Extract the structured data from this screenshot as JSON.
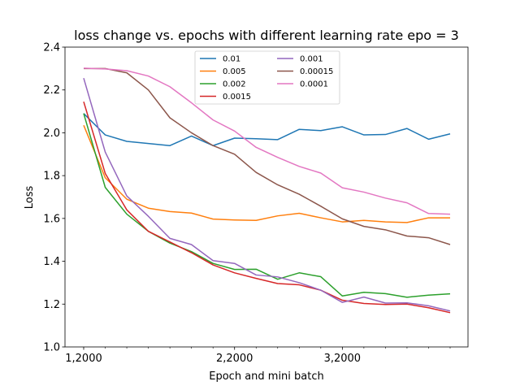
{
  "chart_data": {
    "type": "line",
    "title": "loss change vs. epochs with different learning rate epo = 3",
    "xlabel": "Epoch and mini batch",
    "ylabel": "Loss",
    "ylim": [
      1.0,
      2.4
    ],
    "yticks": [
      1.0,
      1.2,
      1.4,
      1.6,
      1.8,
      2.0,
      2.2,
      2.4
    ],
    "ytick_labels": [
      "1.0",
      "1.2",
      "1.4",
      "1.6",
      "1.8",
      "2.0",
      "2.2",
      "2.4"
    ],
    "xticks_major": [
      0,
      7,
      12
    ],
    "xtick_labels": [
      "1,2000",
      "2,2000",
      "3,2000"
    ],
    "x": [
      0,
      1,
      2,
      3,
      4,
      5,
      6,
      7,
      8,
      9,
      10,
      11,
      12,
      13,
      14,
      15,
      16,
      17
    ],
    "grid": false,
    "legend_position": "top-center",
    "legend_columns": 2,
    "series": [
      {
        "name": "0.01",
        "color": "#1f77b4",
        "values": [
          2.09,
          1.99,
          1.96,
          1.95,
          1.94,
          1.985,
          1.94,
          1.975,
          1.972,
          1.968,
          2.016,
          2.01,
          2.028,
          1.99,
          1.992,
          2.02,
          1.97,
          1.995
        ]
      },
      {
        "name": "0.005",
        "color": "#ff7f0e",
        "values": [
          2.035,
          1.79,
          1.69,
          1.648,
          1.632,
          1.625,
          1.597,
          1.593,
          1.591,
          1.612,
          1.624,
          1.603,
          1.584,
          1.591,
          1.584,
          1.581,
          1.603,
          1.603
        ]
      },
      {
        "name": "0.002",
        "color": "#2ca02c",
        "values": [
          2.09,
          1.745,
          1.62,
          1.54,
          1.485,
          1.445,
          1.39,
          1.362,
          1.363,
          1.316,
          1.346,
          1.328,
          1.238,
          1.255,
          1.249,
          1.232,
          1.242,
          1.248
        ]
      },
      {
        "name": "0.0015",
        "color": "#d62728",
        "values": [
          2.145,
          1.81,
          1.64,
          1.54,
          1.49,
          1.44,
          1.383,
          1.346,
          1.32,
          1.296,
          1.29,
          1.265,
          1.218,
          1.203,
          1.198,
          1.2,
          1.183,
          1.16
        ]
      },
      {
        "name": "0.001",
        "color": "#9467bd",
        "values": [
          2.255,
          1.91,
          1.705,
          1.61,
          1.507,
          1.478,
          1.403,
          1.39,
          1.336,
          1.327,
          1.3,
          1.265,
          1.208,
          1.233,
          1.205,
          1.206,
          1.192,
          1.168
        ]
      },
      {
        "name": "0.00015",
        "color": "#8c564b",
        "values": [
          2.3,
          2.3,
          2.28,
          2.2,
          2.07,
          2.0,
          1.94,
          1.9,
          1.815,
          1.757,
          1.713,
          1.657,
          1.598,
          1.563,
          1.547,
          1.518,
          1.51,
          1.478
        ]
      },
      {
        "name": "0.0001",
        "color": "#e377c2",
        "values": [
          2.302,
          2.298,
          2.29,
          2.265,
          2.215,
          2.14,
          2.06,
          2.008,
          1.932,
          1.885,
          1.843,
          1.812,
          1.743,
          1.723,
          1.695,
          1.673,
          1.623,
          1.62
        ]
      }
    ]
  }
}
